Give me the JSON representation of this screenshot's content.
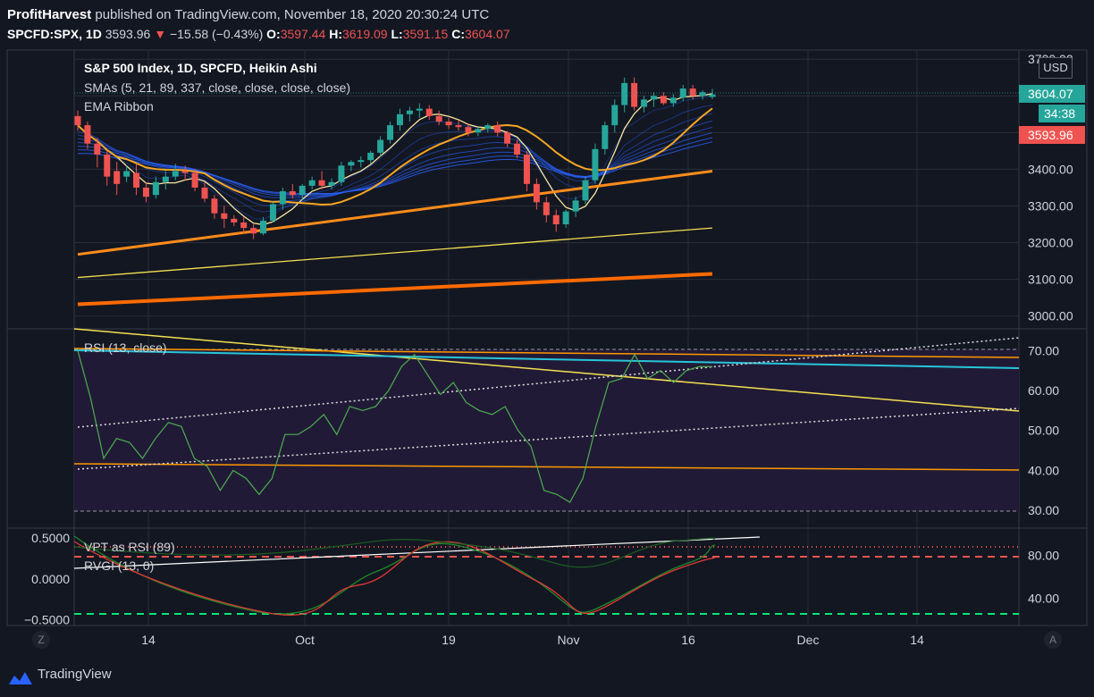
{
  "header": {
    "publisher": "ProfitHarvest",
    "published_text": "published on TradingView.com, November 18, 2020 20:30:24 UTC",
    "symbol": "SPCFD:SPX, 1D",
    "last": "3593.96",
    "change": "−15.58 (−0.43%)",
    "open_label": "O:",
    "open": "3597.44",
    "high_label": "H:",
    "high": "3619.09",
    "low_label": "L:",
    "low": "3591.15",
    "close_label": "C:",
    "close": "3604.07"
  },
  "footer": {
    "brand": "TradingView"
  },
  "controls": {
    "currency": "USD",
    "corner_left": "Z",
    "corner_right": "A"
  },
  "colors": {
    "background": "#131722",
    "up": "#26a69a",
    "down": "#ef5350",
    "ema_ribbon": "#2962ff",
    "sma5": "#f9e79f",
    "sma21": "#f5a623",
    "sma89": "#ff8c1a",
    "sma337": "#f5e050",
    "sma_long": "#ff6a00",
    "rsi": "#4caf50",
    "rsi_bg": "#211a36"
  },
  "chart_data": [
    {
      "type": "candlestick",
      "title": "S&P 500 Index, 1D, SPCFD, Heikin Ashi",
      "legend": [
        "SMAs (5, 21, 89, 337, close, close, close, close)",
        "EMA Ribbon"
      ],
      "x_labels": [
        "14",
        "Oct",
        "19",
        "Nov",
        "16",
        "Dec",
        "14"
      ],
      "y_ticks": [
        3000,
        3100,
        3200,
        3300,
        3400,
        3500,
        3600,
        3700
      ],
      "y_tick_labels": [
        "3000.00",
        "3100.00",
        "3200.00",
        "3300.00",
        "3400.00",
        "3500.00",
        "3600.00",
        "3700.00"
      ],
      "ylim": [
        2970,
        3720
      ],
      "price_labels": {
        "close": "3604.07",
        "countdown": "34:38",
        "last": "3593.96"
      },
      "candles": [
        [
          3545,
          3560,
          3505,
          3520
        ],
        [
          3520,
          3530,
          3455,
          3470
        ],
        [
          3470,
          3485,
          3405,
          3440
        ],
        [
          3440,
          3450,
          3355,
          3380
        ],
        [
          3395,
          3420,
          3330,
          3360
        ],
        [
          3380,
          3410,
          3365,
          3395
        ],
        [
          3390,
          3415,
          3330,
          3350
        ],
        [
          3350,
          3365,
          3310,
          3325
        ],
        [
          3330,
          3380,
          3320,
          3365
        ],
        [
          3365,
          3395,
          3345,
          3380
        ],
        [
          3380,
          3415,
          3370,
          3395
        ],
        [
          3395,
          3410,
          3370,
          3390
        ],
        [
          3390,
          3400,
          3340,
          3350
        ],
        [
          3350,
          3365,
          3310,
          3320
        ],
        [
          3320,
          3330,
          3265,
          3280
        ],
        [
          3280,
          3300,
          3240,
          3265
        ],
        [
          3265,
          3275,
          3245,
          3255
        ],
        [
          3255,
          3270,
          3225,
          3240
        ],
        [
          3240,
          3250,
          3210,
          3225
        ],
        [
          3225,
          3270,
          3220,
          3260
        ],
        [
          3260,
          3310,
          3255,
          3305
        ],
        [
          3305,
          3350,
          3290,
          3340
        ],
        [
          3340,
          3360,
          3320,
          3330
        ],
        [
          3330,
          3360,
          3315,
          3355
        ],
        [
          3355,
          3380,
          3345,
          3370
        ],
        [
          3370,
          3395,
          3345,
          3355
        ],
        [
          3355,
          3375,
          3345,
          3365
        ],
        [
          3365,
          3420,
          3355,
          3410
        ],
        [
          3410,
          3425,
          3395,
          3420
        ],
        [
          3420,
          3435,
          3405,
          3425
        ],
        [
          3425,
          3450,
          3415,
          3445
        ],
        [
          3445,
          3490,
          3435,
          3480
        ],
        [
          3480,
          3530,
          3470,
          3520
        ],
        [
          3520,
          3565,
          3505,
          3550
        ],
        [
          3550,
          3570,
          3530,
          3560
        ],
        [
          3560,
          3580,
          3540,
          3565
        ],
        [
          3565,
          3575,
          3535,
          3545
        ],
        [
          3545,
          3560,
          3520,
          3530
        ],
        [
          3530,
          3540,
          3510,
          3520
        ],
        [
          3520,
          3535,
          3505,
          3515
        ],
        [
          3515,
          3525,
          3490,
          3500
        ],
        [
          3500,
          3515,
          3490,
          3510
        ],
        [
          3510,
          3525,
          3500,
          3520
        ],
        [
          3520,
          3530,
          3490,
          3500
        ],
        [
          3500,
          3505,
          3460,
          3470
        ],
        [
          3470,
          3480,
          3430,
          3440
        ],
        [
          3440,
          3450,
          3340,
          3360
        ],
        [
          3360,
          3375,
          3290,
          3310
        ],
        [
          3310,
          3325,
          3255,
          3275
        ],
        [
          3275,
          3290,
          3230,
          3250
        ],
        [
          3250,
          3290,
          3240,
          3285
        ],
        [
          3285,
          3325,
          3270,
          3315
        ],
        [
          3315,
          3380,
          3305,
          3370
        ],
        [
          3370,
          3470,
          3360,
          3455
        ],
        [
          3455,
          3530,
          3440,
          3520
        ],
        [
          3520,
          3590,
          3500,
          3575
        ],
        [
          3575,
          3650,
          3555,
          3635
        ],
        [
          3635,
          3650,
          3560,
          3570
        ],
        [
          3570,
          3600,
          3555,
          3590
        ],
        [
          3590,
          3610,
          3570,
          3600
        ],
        [
          3600,
          3610,
          3575,
          3580
        ],
        [
          3580,
          3605,
          3570,
          3595
        ],
        [
          3595,
          3630,
          3585,
          3620
        ],
        [
          3620,
          3630,
          3590,
          3600
        ],
        [
          3600,
          3615,
          3590,
          3610
        ],
        [
          3597,
          3619,
          3591,
          3604
        ]
      ]
    },
    {
      "type": "line",
      "legend": [
        "RSI (13, close)"
      ],
      "y_ticks": [
        30,
        40,
        50,
        60,
        70
      ],
      "y_tick_labels": [
        "30.00",
        "40.00",
        "50.00",
        "60.00",
        "70.00"
      ],
      "ylim": [
        26,
        75
      ],
      "rsi": [
        70,
        58,
        43,
        48,
        47,
        43,
        48,
        52,
        51,
        43,
        41,
        35,
        40,
        38,
        34,
        38,
        49,
        49,
        51,
        54,
        49,
        56,
        55,
        56,
        60,
        66,
        69,
        64,
        59,
        62,
        57,
        55,
        54,
        56,
        50,
        46,
        35,
        34,
        32,
        38,
        51,
        62,
        63,
        69,
        63,
        65,
        62,
        65,
        66,
        66
      ]
    },
    {
      "type": "line",
      "legend": [
        "VPT as RSI (89)",
        "RVGI (13, 0)"
      ],
      "y_ticks_left": [
        -0.5,
        0.0,
        0.5
      ],
      "y_tick_labels_left": [
        "−0.5000",
        "0.0000",
        "0.5000"
      ],
      "y_ticks_right": [
        40,
        80
      ],
      "y_tick_labels_right": [
        "40.00",
        "80.00"
      ],
      "ylim_left": [
        -0.55,
        0.6
      ]
    }
  ]
}
